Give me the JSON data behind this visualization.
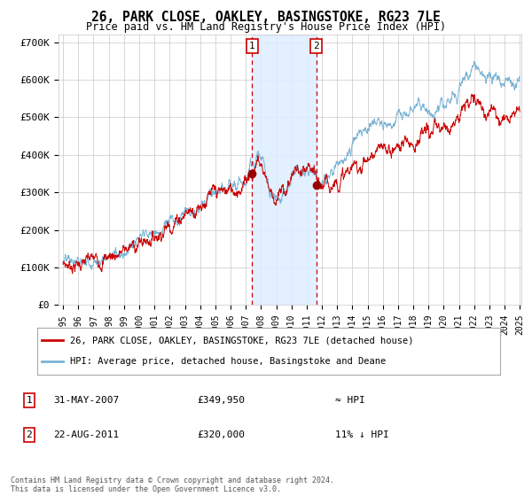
{
  "title": "26, PARK CLOSE, OAKLEY, BASINGSTOKE, RG23 7LE",
  "subtitle": "Price paid vs. HM Land Registry's House Price Index (HPI)",
  "legend_line1": "26, PARK CLOSE, OAKLEY, BASINGSTOKE, RG23 7LE (detached house)",
  "legend_line2": "HPI: Average price, detached house, Basingstoke and Deane",
  "transaction1_date": "31-MAY-2007",
  "transaction1_price": 349950,
  "transaction1_label": "≈ HPI",
  "transaction1_year": 2007.42,
  "transaction2_date": "22-AUG-2011",
  "transaction2_price": 320000,
  "transaction2_label": "11% ↓ HPI",
  "transaction2_year": 2011.64,
  "footnote1": "Contains HM Land Registry data © Crown copyright and database right 2024.",
  "footnote2": "This data is licensed under the Open Government Licence v3.0.",
  "hpi_color": "#7ab3d4",
  "price_color": "#cc0000",
  "dot_color": "#990000",
  "background_color": "#ffffff",
  "grid_color": "#c8c8c8",
  "shading_color": "#ddeeff",
  "dashed_line_color": "#cc0000",
  "ylim": [
    0,
    720000
  ],
  "yticks": [
    0,
    100000,
    200000,
    300000,
    400000,
    500000,
    600000,
    700000
  ],
  "ytick_labels": [
    "£0",
    "£100K",
    "£200K",
    "£300K",
    "£400K",
    "£500K",
    "£600K",
    "£700K"
  ],
  "year_start": 1995,
  "year_end": 2025
}
